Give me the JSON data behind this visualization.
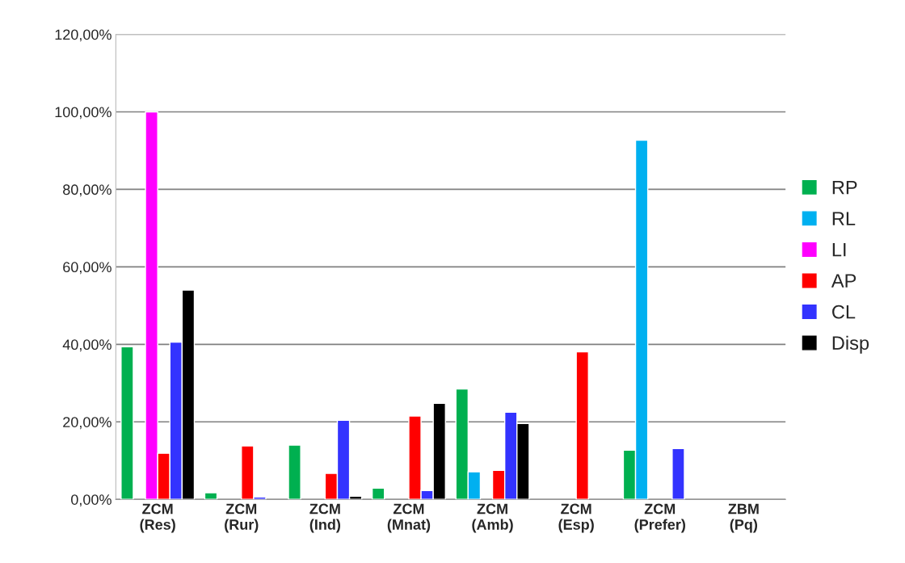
{
  "chart_data": {
    "type": "bar",
    "categories": [
      "ZCM\n(Res)",
      "ZCM\n(Rur)",
      "ZCM\n(Ind)",
      "ZCM\n(Mnat)",
      "ZCM\n(Amb)",
      "ZCM\n(Esp)",
      "ZCM\n(Prefer)",
      "ZBM\n(Pq)"
    ],
    "series": [
      {
        "name": "RP",
        "color": "#00b050",
        "values": [
          39.4,
          1.7,
          14.0,
          2.9,
          28.5,
          null,
          12.7,
          null
        ]
      },
      {
        "name": "RL",
        "color": "#00b0f0",
        "values": [
          null,
          null,
          null,
          null,
          7.1,
          null,
          92.7,
          null
        ]
      },
      {
        "name": "LI",
        "color": "#ff00ff",
        "values": [
          100,
          null,
          null,
          null,
          null,
          null,
          null,
          null
        ]
      },
      {
        "name": "AP",
        "color": "#ff0000",
        "values": [
          11.9,
          13.8,
          6.7,
          21.5,
          7.5,
          38.1,
          null,
          null
        ]
      },
      {
        "name": "CL",
        "color": "#3333ff",
        "values": [
          40.6,
          0.6,
          20.4,
          2.3,
          22.5,
          null,
          13.1,
          null
        ]
      },
      {
        "name": "Disp",
        "color": "#000000",
        "values": [
          54.0,
          null,
          0.8,
          24.8,
          19.6,
          null,
          null,
          null
        ]
      }
    ],
    "ylim": [
      0,
      120
    ],
    "yticks": [
      {
        "value": 0,
        "label": "0,00%"
      },
      {
        "value": 20,
        "label": "20,00%"
      },
      {
        "value": 40,
        "label": "40,00%"
      },
      {
        "value": 60,
        "label": "60,00%"
      },
      {
        "value": 80,
        "label": "80,00%"
      },
      {
        "value": 100,
        "label": "100,00%"
      },
      {
        "value": 120,
        "label": "120,00%"
      }
    ],
    "grid": "y",
    "legend": "right"
  }
}
